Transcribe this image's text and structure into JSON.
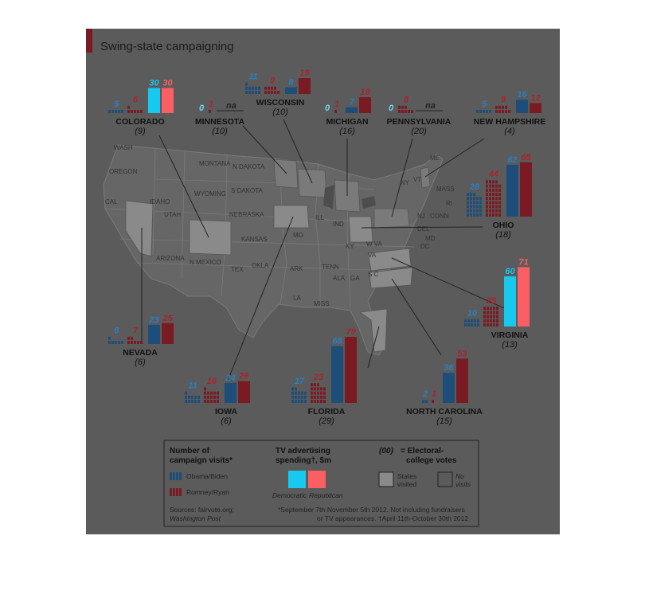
{
  "title": "Swing-state campaigning",
  "colors": {
    "obama": "#1d4e7a",
    "romney": "#7a1a22",
    "democratic_spend": "#17c9ef",
    "republican_spend": "#fb5f63",
    "visited_state": "#8a8a8a",
    "background": "#5b5b5b"
  },
  "chart_data": {
    "type": "bar",
    "title": "Swing-state campaigning",
    "series": [
      {
        "name": "Obama/Biden",
        "metric": "Number of campaign visits*"
      },
      {
        "name": "Romney/Ryan",
        "metric": "Number of campaign visits*"
      },
      {
        "name": "Democratic",
        "metric": "TV advertising spending†, $m"
      },
      {
        "name": "Republican",
        "metric": "TV advertising spending†, $m"
      }
    ],
    "states": [
      {
        "name": "COLORADO",
        "ev": "(9)",
        "obama": 5,
        "romney": 6,
        "dem": 30,
        "rep": 30
      },
      {
        "name": "MINNESOTA",
        "ev": "(10)",
        "obama": 0,
        "romney": 1,
        "dem": null,
        "rep": null,
        "na": "na"
      },
      {
        "name": "WISCONSIN",
        "ev": "(10)",
        "obama": 11,
        "romney": 9,
        "dem": 8,
        "rep": 19
      },
      {
        "name": "MICHIGAN",
        "ev": "(16)",
        "obama": 0,
        "romney": 1,
        "dem": 7,
        "rep": 19
      },
      {
        "name": "PENNSYLVANIA",
        "ev": "(20)",
        "obama": 0,
        "romney": 8,
        "dem": null,
        "rep": null,
        "na": "na"
      },
      {
        "name": "NEW HAMPSHIRE",
        "ev": "(4)",
        "obama": 5,
        "romney": 9,
        "dem": 16,
        "rep": 12
      },
      {
        "name": "OHIO",
        "ev": "(18)",
        "obama": 28,
        "romney": 44,
        "dem": 62,
        "rep": 65
      },
      {
        "name": "VIRGINIA",
        "ev": "(13)",
        "obama": 10,
        "romney": 25,
        "dem": 60,
        "rep": 71
      },
      {
        "name": "NEVADA",
        "ev": "(6)",
        "obama": 6,
        "romney": 7,
        "dem": 23,
        "rep": 25
      },
      {
        "name": "IOWA",
        "ev": "(6)",
        "obama": 11,
        "romney": 16,
        "dem": 24,
        "rep": 26
      },
      {
        "name": "FLORIDA",
        "ev": "(29)",
        "obama": 17,
        "romney": 23,
        "dem": 68,
        "rep": 79
      },
      {
        "name": "NORTH CAROLINA",
        "ev": "(15)",
        "obama": 2,
        "romney": 1,
        "dem": 36,
        "rep": 53
      }
    ]
  },
  "map_labels": [
    {
      "id": "wash",
      "text": "WASH"
    },
    {
      "id": "oregon",
      "text": "OREGON"
    },
    {
      "id": "montana",
      "text": "MONTANA"
    },
    {
      "id": "ndakota",
      "text": "N DAKOTA"
    },
    {
      "id": "idaho",
      "text": "IDAHO"
    },
    {
      "id": "wyoming",
      "text": "WYOMING"
    },
    {
      "id": "sdakota",
      "text": "S DAKOTA"
    },
    {
      "id": "cal",
      "text": "CAL"
    },
    {
      "id": "utah",
      "text": "UTAH"
    },
    {
      "id": "nebraska",
      "text": "NEBRASKA"
    },
    {
      "id": "kansas",
      "text": "KANSAS"
    },
    {
      "id": "arizona",
      "text": "ARIZONA"
    },
    {
      "id": "nmexico",
      "text": "N MEXICO"
    },
    {
      "id": "okla",
      "text": "OKLA"
    },
    {
      "id": "tex",
      "text": "TEX"
    },
    {
      "id": "mo",
      "text": "MO"
    },
    {
      "id": "ill",
      "text": "ILL"
    },
    {
      "id": "ind",
      "text": "IND"
    },
    {
      "id": "ky",
      "text": "KY"
    },
    {
      "id": "tenn",
      "text": "TENN"
    },
    {
      "id": "ark",
      "text": "ARK"
    },
    {
      "id": "la",
      "text": "LA"
    },
    {
      "id": "miss",
      "text": "MISS"
    },
    {
      "id": "ala",
      "text": "ALA"
    },
    {
      "id": "ga",
      "text": "GA"
    },
    {
      "id": "sc",
      "text": "S C"
    },
    {
      "id": "wva",
      "text": "W VA"
    },
    {
      "id": "va",
      "text": "VA"
    },
    {
      "id": "ny",
      "text": "NY"
    },
    {
      "id": "vt",
      "text": "VT"
    },
    {
      "id": "me",
      "text": "ME"
    },
    {
      "id": "mass",
      "text": "MASS"
    },
    {
      "id": "ri",
      "text": "RI"
    },
    {
      "id": "conn",
      "text": "CONN"
    },
    {
      "id": "nj",
      "text": "NJ"
    },
    {
      "id": "del",
      "text": "DEL"
    },
    {
      "id": "md",
      "text": "MD"
    },
    {
      "id": "dc",
      "text": "DC"
    }
  ],
  "legend": {
    "visits_title_1": "Number of",
    "visits_title_2": "campaign visits*",
    "obama": "Obama/Biden",
    "romney": "Romney/Ryan",
    "tv_title_1": "TV advertising",
    "tv_title_2": "spending†, $m",
    "democratic": "Democratic",
    "republican": "Republican",
    "ev_code": "(00)",
    "ev_text_1": "= Electoral-",
    "ev_text_2": "college votes",
    "visited_1": "States",
    "visited_2": "visited",
    "novisit_1": "No",
    "novisit_2": "visits"
  },
  "footer": {
    "sources_1": "Sources: fairvote.org;",
    "sources_2": "Washington Post",
    "note_1": "*September 7th-November 5th 2012. Not including fundraisers",
    "note_2": "or TV appearances.  †April 11th-October 30th 2012"
  }
}
